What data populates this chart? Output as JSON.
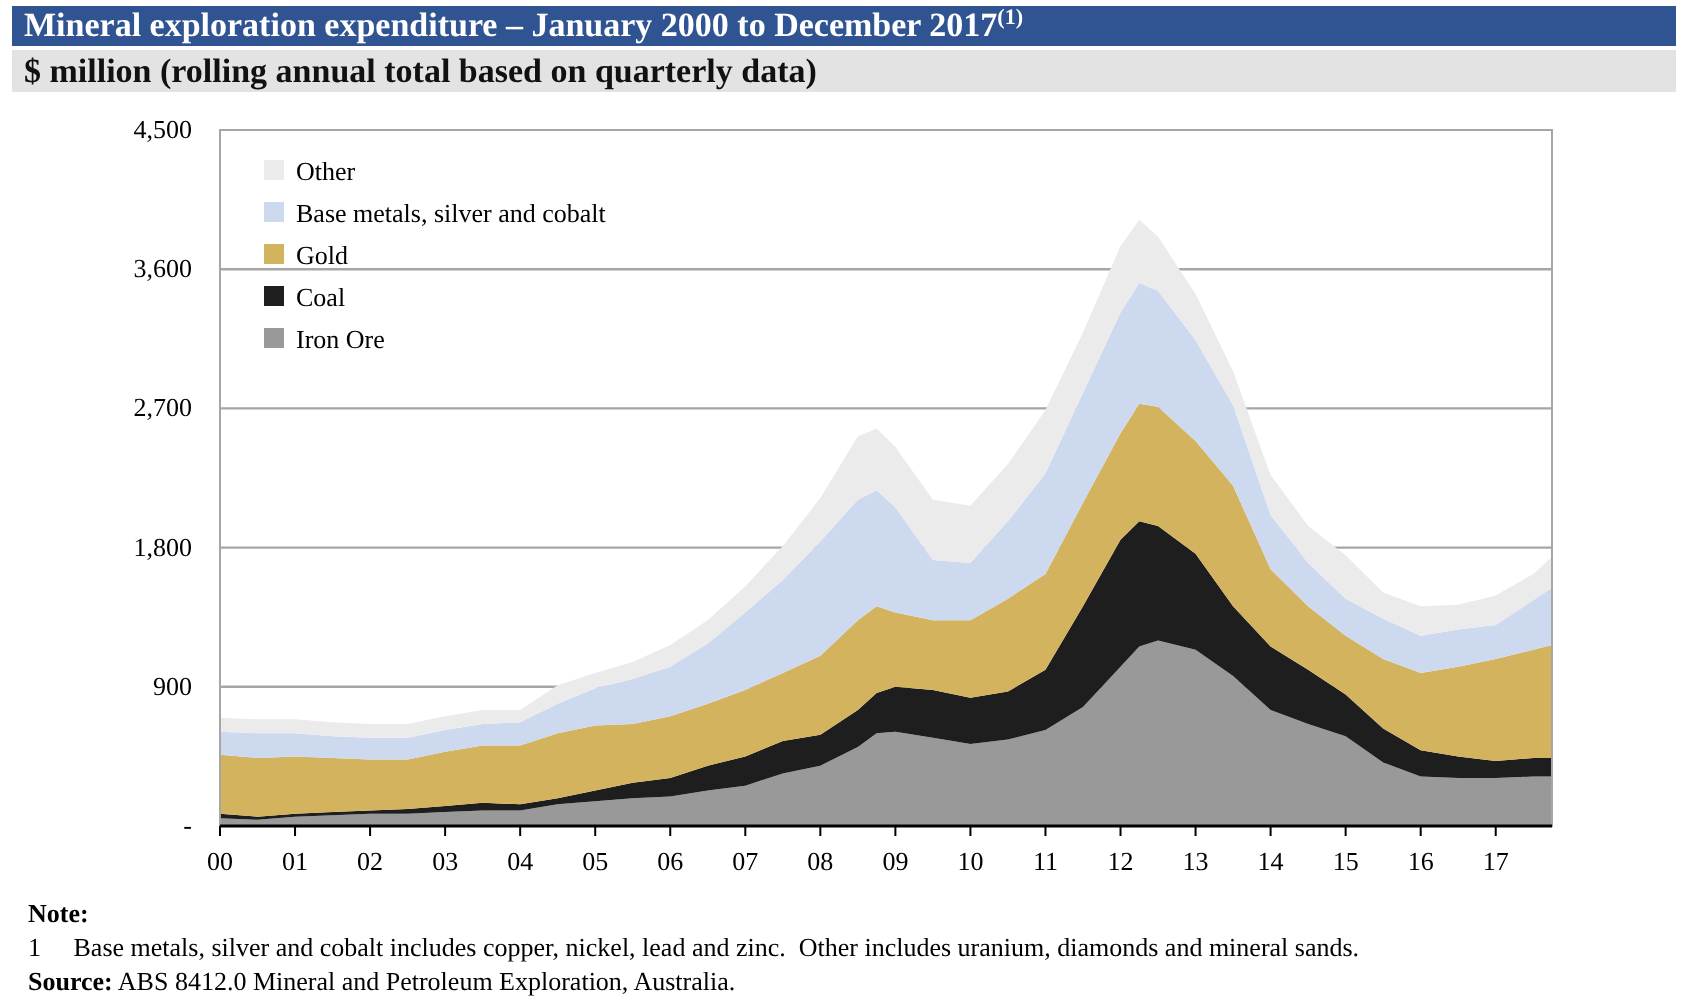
{
  "chart_data": {
    "type": "area",
    "stacked": true,
    "title": "Mineral exploration expenditure – January 2000 to December 2017$^{(1)}$",
    "subtitle": "$ million (rolling annual total based on quarterly data)",
    "x": [
      2000,
      2000.5,
      2001,
      2001.5,
      2002,
      2002.5,
      2003,
      2003.5,
      2004,
      2004.5,
      2005,
      2005.5,
      2006,
      2006.5,
      2007,
      2007.5,
      2008,
      2008.5,
      2008.75,
      2009,
      2009.5,
      2010,
      2010.5,
      2011,
      2011.5,
      2012,
      2012.25,
      2012.5,
      2013,
      2013.5,
      2014,
      2014.5,
      2015,
      2015.5,
      2016,
      2016.5,
      2017,
      2017.5,
      2017.75
    ],
    "series": [
      {
        "name": "Iron Ore",
        "color": "#999999",
        "values": [
          50,
          40,
          60,
          70,
          80,
          80,
          90,
          100,
          100,
          140,
          160,
          180,
          190,
          230,
          260,
          340,
          390,
          510,
          600,
          610,
          570,
          530,
          560,
          620,
          770,
          1030,
          1160,
          1200,
          1140,
          970,
          750,
          660,
          580,
          410,
          320,
          310,
          310,
          320,
          320
        ]
      },
      {
        "name": "Coal",
        "color": "#1e1e1e",
        "values": [
          30,
          20,
          20,
          20,
          20,
          30,
          40,
          50,
          40,
          40,
          70,
          100,
          120,
          160,
          190,
          210,
          200,
          240,
          260,
          290,
          310,
          300,
          310,
          390,
          650,
          820,
          810,
          740,
          620,
          450,
          410,
          350,
          270,
          220,
          170,
          140,
          110,
          120,
          120
        ]
      },
      {
        "name": "Gold",
        "color": "#d4b35f",
        "values": [
          380,
          380,
          370,
          350,
          330,
          320,
          350,
          370,
          380,
          420,
          420,
          380,
          400,
          400,
          430,
          440,
          510,
          580,
          560,
          480,
          450,
          500,
          600,
          620,
          670,
          690,
          760,
          770,
          730,
          780,
          500,
          410,
          380,
          450,
          500,
          580,
          660,
          700,
          730
        ]
      },
      {
        "name": "Base metals, silver and cobalt",
        "color": "#cdd9ef",
        "values": [
          150,
          160,
          150,
          140,
          140,
          140,
          140,
          140,
          150,
          190,
          240,
          290,
          320,
          390,
          500,
          600,
          740,
          780,
          750,
          680,
          390,
          370,
          500,
          650,
          710,
          780,
          780,
          750,
          650,
          520,
          350,
          280,
          240,
          260,
          240,
          240,
          220,
          320,
          370
        ]
      },
      {
        "name": "Other",
        "color": "#ebebeb",
        "values": [
          90,
          90,
          90,
          90,
          90,
          90,
          90,
          90,
          80,
          120,
          100,
          110,
          140,
          150,
          170,
          220,
          280,
          410,
          400,
          390,
          390,
          370,
          370,
          410,
          390,
          430,
          410,
          350,
          300,
          220,
          260,
          240,
          280,
          170,
          190,
          160,
          190,
          170,
          200
        ]
      }
    ],
    "xlim": [
      2000,
      2017.75
    ],
    "xticks": [
      {
        "value": 2000,
        "label": "00"
      },
      {
        "value": 2001,
        "label": "01"
      },
      {
        "value": 2002,
        "label": "02"
      },
      {
        "value": 2003,
        "label": "03"
      },
      {
        "value": 2004,
        "label": "04"
      },
      {
        "value": 2005,
        "label": "05"
      },
      {
        "value": 2006,
        "label": "06"
      },
      {
        "value": 2007,
        "label": "07"
      },
      {
        "value": 2008,
        "label": "08"
      },
      {
        "value": 2009,
        "label": "09"
      },
      {
        "value": 2010,
        "label": "10"
      },
      {
        "value": 2011,
        "label": "11"
      },
      {
        "value": 2012,
        "label": "12"
      },
      {
        "value": 2013,
        "label": "13"
      },
      {
        "value": 2014,
        "label": "14"
      },
      {
        "value": 2015,
        "label": "15"
      },
      {
        "value": 2016,
        "label": "16"
      },
      {
        "value": 2017,
        "label": "17"
      }
    ],
    "ylim": [
      0,
      4500
    ],
    "yticks": [
      {
        "value": 0,
        "label": "-"
      },
      900,
      {
        "value": 1800,
        "label": "1,800"
      },
      {
        "value": 2700,
        "label": "2,700"
      },
      {
        "value": 3600,
        "label": "3,600"
      },
      {
        "value": 4500,
        "label": "4,500"
      }
    ],
    "grid": "y",
    "legend": "top left",
    "annotations": [
      "Note:",
      "1     Base metals, silver and cobalt includes copper, nickel, lead and zinc.  Other includes uranium, diamonds and mineral sands.",
      "Source: ABS 8412.0 Mineral and Petroleum Exploration, Australia."
    ]
  }
}
